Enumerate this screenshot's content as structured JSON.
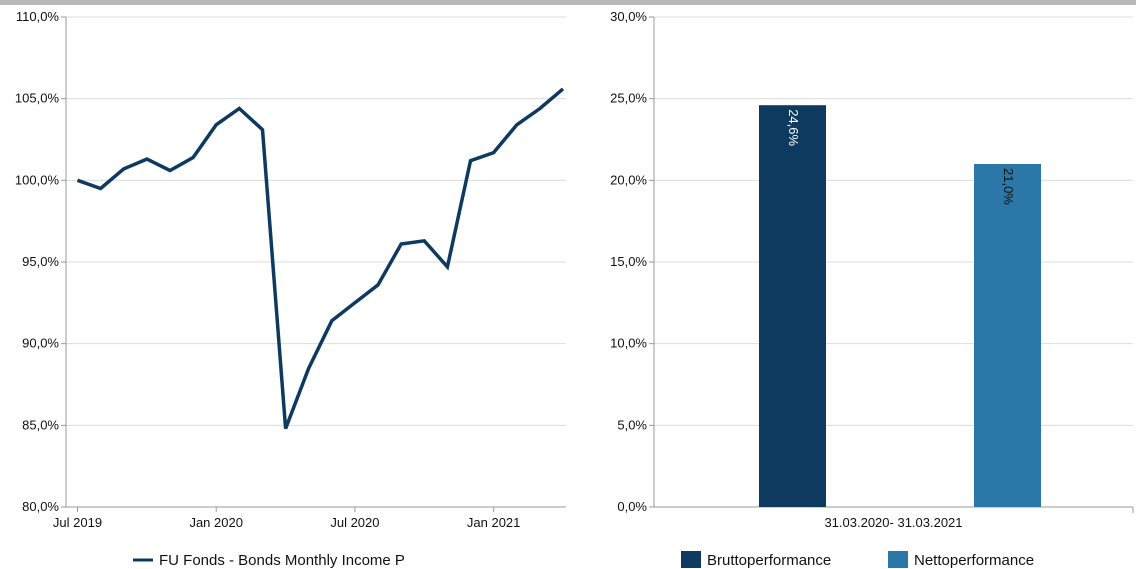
{
  "chart_data": [
    {
      "type": "line",
      "title": "",
      "xlabel": "",
      "ylabel": "",
      "ylim": [
        80,
        110
      ],
      "yticks": [
        "80,0%",
        "85,0%",
        "90,0%",
        "95,0%",
        "100,0%",
        "105,0%",
        "110,0%"
      ],
      "xticks": [
        "Jul 2019",
        "Jan 2020",
        "Jul 2020",
        "Jan 2021"
      ],
      "x": [
        "2019-07",
        "2019-08",
        "2019-09",
        "2019-10",
        "2019-11",
        "2019-12",
        "2020-01",
        "2020-02",
        "2020-03",
        "2020-04",
        "2020-05",
        "2020-06",
        "2020-07",
        "2020-08",
        "2020-09",
        "2020-10",
        "2020-11",
        "2020-12",
        "2021-01",
        "2021-02",
        "2021-03",
        "2021-04"
      ],
      "series": [
        {
          "name": "FU Fonds - Bonds Monthly Income P",
          "color": "#0f3a5f",
          "values": [
            100.0,
            99.5,
            100.7,
            101.3,
            100.6,
            101.4,
            103.4,
            104.4,
            103.1,
            84.8,
            88.5,
            91.4,
            92.5,
            93.6,
            96.1,
            96.3,
            94.7,
            101.2,
            101.7,
            103.4,
            104.4,
            105.6
          ]
        }
      ],
      "grid": true,
      "legend": "bottom"
    },
    {
      "type": "bar",
      "title": "",
      "xlabel": "",
      "ylabel": "",
      "ylim": [
        0,
        30
      ],
      "yticks": [
        "0,0%",
        "5,0%",
        "10,0%",
        "15,0%",
        "20,0%",
        "25,0%",
        "30,0%"
      ],
      "categories": [
        "31.03.2020- 31.03.2021"
      ],
      "series": [
        {
          "name": "Bruttoperformance",
          "color": "#0f3a5f",
          "values": [
            24.6
          ],
          "data_label": "24,6%",
          "label_color": "#ffffff"
        },
        {
          "name": "Nettoperformance",
          "color": "#2a77a8",
          "values": [
            21.0
          ],
          "data_label": "21,0%",
          "label_color": "#111111"
        }
      ],
      "grid": true,
      "legend": "bottom"
    }
  ]
}
